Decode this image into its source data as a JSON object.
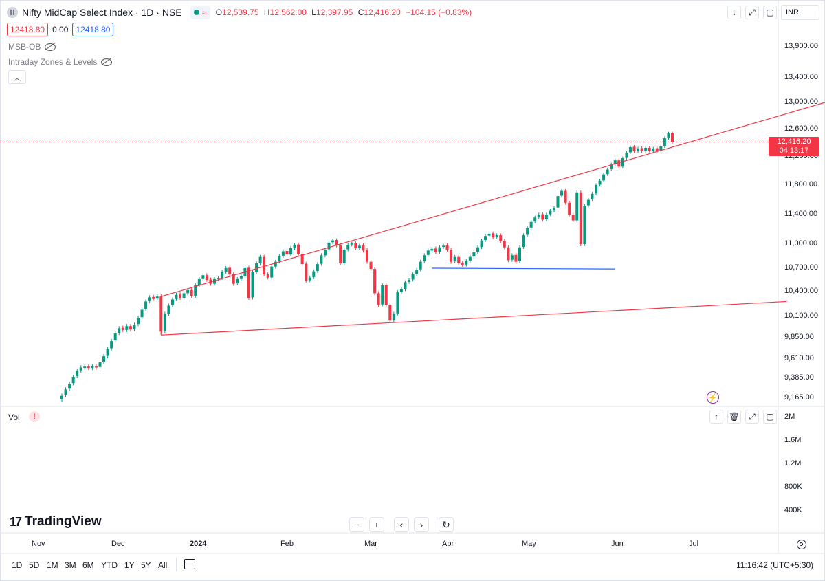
{
  "header": {
    "symbol_title": "Nifty MidCap Select Index · 1D · NSE",
    "ohlc": {
      "o_label": "O",
      "o_value": "12,539.75",
      "h_label": "H",
      "h_value": "12,562.00",
      "l_label": "L",
      "l_value": "12,397.95",
      "c_label": "C",
      "c_value": "12,416.20",
      "change": "−104.15 (−0.83%)"
    },
    "bid": "12418.80",
    "spread": "0.00",
    "ask": "12418.80",
    "currency": "INR"
  },
  "indicators": [
    {
      "name": "MSB-OB"
    },
    {
      "name": "Intraday Zones & Levels"
    }
  ],
  "price_axis": {
    "labels": [
      "13,900.00",
      "13,400.00",
      "13,000.00",
      "12,600.00",
      "12,200.00",
      "11,800.00",
      "11,400.00",
      "11,000.00",
      "10,700.00",
      "10,400.00",
      "10,100.00",
      "9,850.00",
      "9,610.00",
      "9,385.00",
      "9,165.00"
    ],
    "last_price": "12,416.20",
    "countdown": "04:13:17"
  },
  "volume_pane": {
    "label": "Vol",
    "axis_labels": [
      "2M",
      "1.6M",
      "1.2M",
      "800K",
      "400K"
    ]
  },
  "time_axis": {
    "labels": [
      "Nov",
      "Dec",
      "2024",
      "Feb",
      "Mar",
      "Apr",
      "May",
      "Jun",
      "Jul"
    ]
  },
  "branding": {
    "logo_text": "TradingView"
  },
  "timeframes": [
    "1D",
    "5D",
    "1M",
    "3M",
    "6M",
    "YTD",
    "1Y",
    "5Y",
    "All"
  ],
  "clock": "11:16:42 (UTC+5:30)",
  "colors": {
    "up": "#089981",
    "down": "#f23645",
    "trendline": "#f23645",
    "level": "#2962ff"
  },
  "chart_data": {
    "type": "candlestick",
    "title": "Nifty MidCap Select Index · 1D · NSE",
    "ylim": [
      9100,
      14000
    ],
    "candles": [
      {
        "o": 9150,
        "c": 9190
      },
      {
        "o": 9200,
        "c": 9260
      },
      {
        "o": 9270,
        "c": 9320
      },
      {
        "o": 9330,
        "c": 9400
      },
      {
        "o": 9410,
        "c": 9470
      },
      {
        "o": 9475,
        "c": 9510
      },
      {
        "o": 9505,
        "c": 9520
      },
      {
        "o": 9520,
        "c": 9505
      },
      {
        "o": 9505,
        "c": 9525
      },
      {
        "o": 9525,
        "c": 9510
      },
      {
        "o": 9515,
        "c": 9570
      },
      {
        "o": 9575,
        "c": 9640
      },
      {
        "o": 9645,
        "c": 9720
      },
      {
        "o": 9730,
        "c": 9810
      },
      {
        "o": 9820,
        "c": 9900
      },
      {
        "o": 9905,
        "c": 9960
      },
      {
        "o": 9965,
        "c": 9940
      },
      {
        "o": 9940,
        "c": 9985
      },
      {
        "o": 9985,
        "c": 9945
      },
      {
        "o": 9950,
        "c": 10000
      },
      {
        "o": 10010,
        "c": 10080
      },
      {
        "o": 10090,
        "c": 10180
      },
      {
        "o": 10190,
        "c": 10280
      },
      {
        "o": 10285,
        "c": 10330
      },
      {
        "o": 10335,
        "c": 10310
      },
      {
        "o": 10315,
        "c": 10340
      },
      {
        "o": 10340,
        "c": 9920
      },
      {
        "o": 9925,
        "c": 10130
      },
      {
        "o": 10130,
        "c": 10230
      },
      {
        "o": 10235,
        "c": 10305
      },
      {
        "o": 10310,
        "c": 10360
      },
      {
        "o": 10365,
        "c": 10320
      },
      {
        "o": 10320,
        "c": 10380
      },
      {
        "o": 10380,
        "c": 10420
      },
      {
        "o": 10420,
        "c": 10350
      },
      {
        "o": 10350,
        "c": 10480
      },
      {
        "o": 10480,
        "c": 10560
      },
      {
        "o": 10560,
        "c": 10610
      },
      {
        "o": 10610,
        "c": 10550
      },
      {
        "o": 10555,
        "c": 10500
      },
      {
        "o": 10500,
        "c": 10560
      },
      {
        "o": 10560,
        "c": 10570
      },
      {
        "o": 10575,
        "c": 10650
      },
      {
        "o": 10655,
        "c": 10700
      },
      {
        "o": 10705,
        "c": 10620
      },
      {
        "o": 10625,
        "c": 10500
      },
      {
        "o": 10505,
        "c": 10560
      },
      {
        "o": 10560,
        "c": 10600
      },
      {
        "o": 10600,
        "c": 10700
      },
      {
        "o": 10705,
        "c": 10320
      },
      {
        "o": 10330,
        "c": 10650
      },
      {
        "o": 10650,
        "c": 10760
      },
      {
        "o": 10760,
        "c": 10840
      },
      {
        "o": 10840,
        "c": 10620
      },
      {
        "o": 10620,
        "c": 10580
      },
      {
        "o": 10580,
        "c": 10720
      },
      {
        "o": 10720,
        "c": 10780
      },
      {
        "o": 10785,
        "c": 10850
      },
      {
        "o": 10855,
        "c": 10910
      },
      {
        "o": 10915,
        "c": 10870
      },
      {
        "o": 10870,
        "c": 10950
      },
      {
        "o": 10950,
        "c": 10990
      },
      {
        "o": 10995,
        "c": 10880
      },
      {
        "o": 10880,
        "c": 10750
      },
      {
        "o": 10755,
        "c": 10540
      },
      {
        "o": 10545,
        "c": 10580
      },
      {
        "o": 10585,
        "c": 10660
      },
      {
        "o": 10665,
        "c": 10750
      },
      {
        "o": 10755,
        "c": 10860
      },
      {
        "o": 10860,
        "c": 10930
      },
      {
        "o": 10935,
        "c": 11020
      },
      {
        "o": 11025,
        "c": 11050
      },
      {
        "o": 11055,
        "c": 10985
      },
      {
        "o": 10985,
        "c": 10760
      },
      {
        "o": 10760,
        "c": 10930
      },
      {
        "o": 10935,
        "c": 10990
      },
      {
        "o": 10995,
        "c": 11010
      },
      {
        "o": 11015,
        "c": 10950
      },
      {
        "o": 10950,
        "c": 10980
      },
      {
        "o": 10985,
        "c": 10920
      },
      {
        "o": 10925,
        "c": 10780
      },
      {
        "o": 10780,
        "c": 10690
      },
      {
        "o": 10690,
        "c": 10380
      },
      {
        "o": 10380,
        "c": 10240
      },
      {
        "o": 10245,
        "c": 10480
      },
      {
        "o": 10485,
        "c": 10240
      },
      {
        "o": 10240,
        "c": 10050
      },
      {
        "o": 10055,
        "c": 10130
      },
      {
        "o": 10135,
        "c": 10390
      },
      {
        "o": 10395,
        "c": 10430
      },
      {
        "o": 10430,
        "c": 10520
      },
      {
        "o": 10525,
        "c": 10550
      },
      {
        "o": 10555,
        "c": 10620
      },
      {
        "o": 10625,
        "c": 10680
      },
      {
        "o": 10685,
        "c": 10780
      },
      {
        "o": 10785,
        "c": 10860
      },
      {
        "o": 10865,
        "c": 10920
      },
      {
        "o": 10920,
        "c": 10940
      },
      {
        "o": 10945,
        "c": 10900
      },
      {
        "o": 10905,
        "c": 10960
      },
      {
        "o": 10965,
        "c": 10980
      },
      {
        "o": 10985,
        "c": 10930
      },
      {
        "o": 10930,
        "c": 10780
      },
      {
        "o": 10785,
        "c": 10840
      },
      {
        "o": 10840,
        "c": 10760
      },
      {
        "o": 10765,
        "c": 10740
      },
      {
        "o": 10745,
        "c": 10790
      },
      {
        "o": 10795,
        "c": 10840
      },
      {
        "o": 10845,
        "c": 10900
      },
      {
        "o": 10905,
        "c": 10960
      },
      {
        "o": 10965,
        "c": 11050
      },
      {
        "o": 11055,
        "c": 11110
      },
      {
        "o": 11115,
        "c": 11140
      },
      {
        "o": 11145,
        "c": 11090
      },
      {
        "o": 11095,
        "c": 11120
      },
      {
        "o": 11120,
        "c": 11040
      },
      {
        "o": 11045,
        "c": 10960
      },
      {
        "o": 10960,
        "c": 10800
      },
      {
        "o": 10805,
        "c": 10860
      },
      {
        "o": 10865,
        "c": 10780
      },
      {
        "o": 10785,
        "c": 10960
      },
      {
        "o": 10965,
        "c": 11120
      },
      {
        "o": 11125,
        "c": 11220
      },
      {
        "o": 11225,
        "c": 11300
      },
      {
        "o": 11305,
        "c": 11360
      },
      {
        "o": 11365,
        "c": 11400
      },
      {
        "o": 11405,
        "c": 11330
      },
      {
        "o": 11335,
        "c": 11400
      },
      {
        "o": 11405,
        "c": 11450
      },
      {
        "o": 11455,
        "c": 11490
      },
      {
        "o": 11495,
        "c": 11650
      },
      {
        "o": 11655,
        "c": 11720
      },
      {
        "o": 11720,
        "c": 11560
      },
      {
        "o": 11560,
        "c": 11400
      },
      {
        "o": 11400,
        "c": 11320
      },
      {
        "o": 11320,
        "c": 11700
      },
      {
        "o": 11700,
        "c": 11000
      },
      {
        "o": 11000,
        "c": 11520
      },
      {
        "o": 11525,
        "c": 11600
      },
      {
        "o": 11605,
        "c": 11680
      },
      {
        "o": 11685,
        "c": 11800
      },
      {
        "o": 11805,
        "c": 11860
      },
      {
        "o": 11865,
        "c": 11950
      },
      {
        "o": 11955,
        "c": 12020
      },
      {
        "o": 12025,
        "c": 12090
      },
      {
        "o": 12095,
        "c": 12150
      },
      {
        "o": 12150,
        "c": 12060
      },
      {
        "o": 12060,
        "c": 12180
      },
      {
        "o": 12185,
        "c": 12260
      },
      {
        "o": 12265,
        "c": 12340
      },
      {
        "o": 12345,
        "c": 12280
      },
      {
        "o": 12285,
        "c": 12320
      },
      {
        "o": 12325,
        "c": 12280
      },
      {
        "o": 12285,
        "c": 12330
      },
      {
        "o": 12330,
        "c": 12290
      },
      {
        "o": 12290,
        "c": 12320
      },
      {
        "o": 12325,
        "c": 12280
      },
      {
        "o": 12285,
        "c": 12350
      },
      {
        "o": 12355,
        "c": 12470
      },
      {
        "o": 12475,
        "c": 12539
      },
      {
        "o": 12539.75,
        "c": 12416.2
      }
    ],
    "trendlines": [
      {
        "name": "upper-channel",
        "from": {
          "i": 26,
          "y": 10340
        },
        "to": {
          "i": 200,
          "y": 13000
        }
      },
      {
        "name": "lower-channel",
        "from": {
          "i": 26,
          "y": 9880
        },
        "to": {
          "i": 190,
          "y": 10280
        }
      },
      {
        "name": "support-level",
        "from": {
          "i": 97,
          "y": 10700
        },
        "to": {
          "i": 145,
          "y": 10690
        }
      }
    ]
  }
}
